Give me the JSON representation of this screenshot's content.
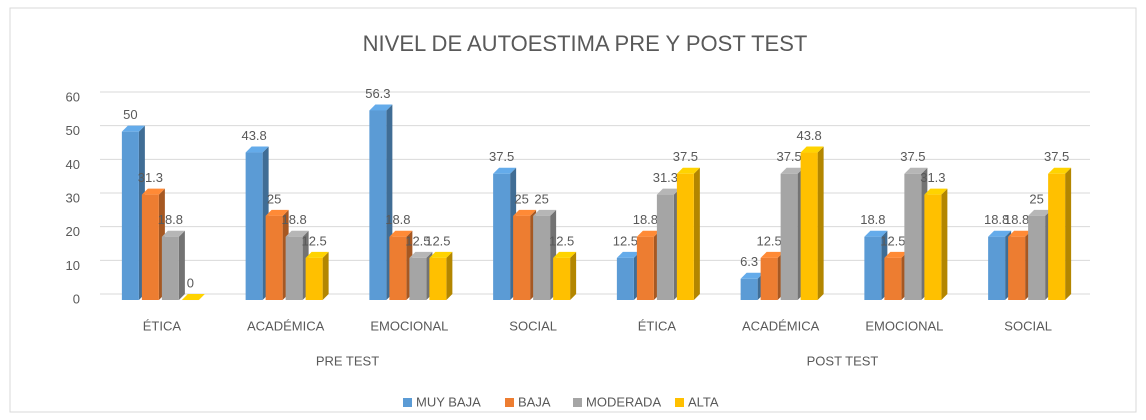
{
  "chart_data": {
    "type": "bar3d",
    "title": "NIVEL DE AUTOESTIMA PRE Y POST TEST",
    "categories": [
      "ÉTICA",
      "ACADÉMICA",
      "EMOCIONAL",
      "SOCIAL",
      "ÉTICA",
      "ACADÉMICA",
      "EMOCIONAL",
      "SOCIAL"
    ],
    "category_groups": [
      "PRE TEST",
      "POST TEST"
    ],
    "series": [
      {
        "name": "MUY BAJA",
        "color": "#5b9bd5",
        "values": [
          50,
          43.8,
          56.3,
          37.5,
          12.5,
          6.3,
          18.8,
          18.8
        ]
      },
      {
        "name": "BAJA",
        "color": "#ed7d31",
        "values": [
          31.3,
          25,
          18.8,
          25,
          18.8,
          12.5,
          12.5,
          18.8
        ]
      },
      {
        "name": "MODERADA",
        "color": "#a5a5a5",
        "values": [
          18.8,
          18.8,
          12.5,
          25,
          31.3,
          37.5,
          37.5,
          25
        ]
      },
      {
        "name": "ALTA",
        "color": "#ffc000",
        "values": [
          0,
          12.5,
          12.5,
          12.5,
          37.5,
          43.8,
          31.3,
          37.5
        ]
      }
    ],
    "ylim": [
      0,
      60
    ],
    "yticks": [
      0,
      10,
      20,
      30,
      40,
      50,
      60
    ],
    "grid": true,
    "legend": "bottom"
  }
}
